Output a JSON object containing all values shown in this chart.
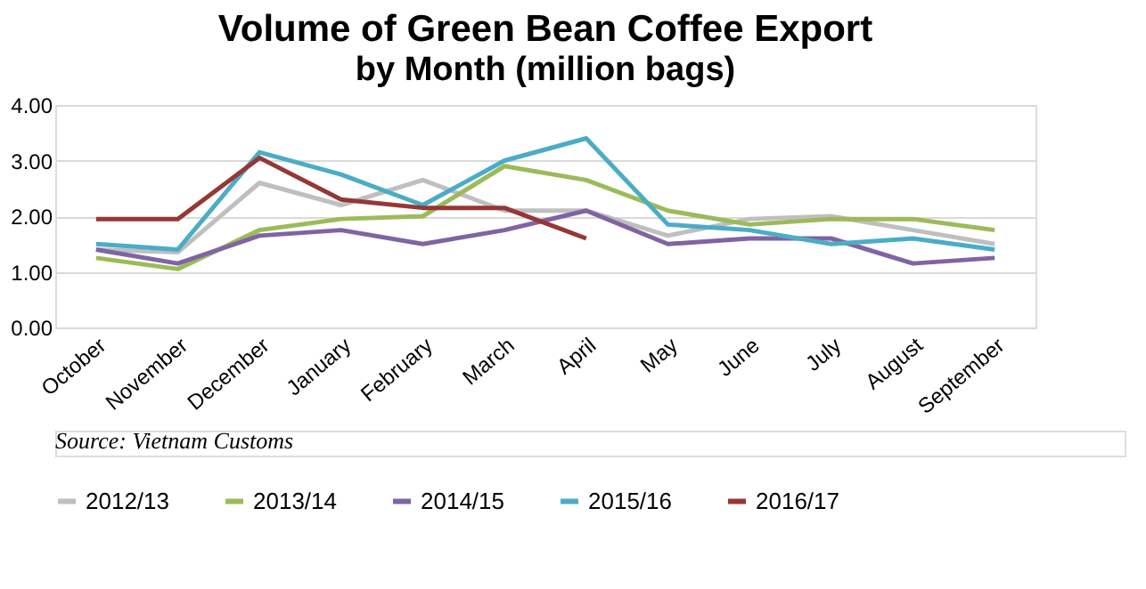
{
  "chart_data": {
    "type": "line",
    "title": "Volume of Green Bean Coffee Export",
    "subtitle": "by Month (million bags)",
    "categories": [
      "October",
      "November",
      "December",
      "January",
      "February",
      "March",
      "April",
      "May",
      "June",
      "July",
      "August",
      "September"
    ],
    "series": [
      {
        "name": "2012/13",
        "color": "#bfbfbf",
        "values": [
          1.4,
          1.35,
          2.6,
          2.2,
          2.65,
          2.1,
          2.1,
          1.65,
          1.95,
          2.0,
          1.75,
          1.5
        ]
      },
      {
        "name": "2013/14",
        "color": "#9bbb59",
        "values": [
          1.25,
          1.05,
          1.75,
          1.95,
          2.0,
          2.9,
          2.65,
          2.1,
          1.85,
          1.95,
          1.95,
          1.75
        ]
      },
      {
        "name": "2014/15",
        "color": "#8064a2",
        "values": [
          1.4,
          1.15,
          1.65,
          1.75,
          1.5,
          1.75,
          2.1,
          1.5,
          1.6,
          1.6,
          1.15,
          1.25
        ]
      },
      {
        "name": "2015/16",
        "color": "#4bacc6",
        "values": [
          1.5,
          1.4,
          3.15,
          2.75,
          2.2,
          3.0,
          3.4,
          1.85,
          1.75,
          1.5,
          1.6,
          1.4
        ]
      },
      {
        "name": "2016/17",
        "color": "#953735",
        "values": [
          1.95,
          1.95,
          3.05,
          2.3,
          2.15,
          2.15,
          1.6,
          null,
          null,
          null,
          null,
          null
        ]
      }
    ],
    "ylim": [
      0,
      4
    ],
    "yticks": [
      {
        "value": 0,
        "label": "0.00"
      },
      {
        "value": 1,
        "label": "1.00"
      },
      {
        "value": 2,
        "label": "2.00"
      },
      {
        "value": 3,
        "label": "3.00"
      },
      {
        "value": 4,
        "label": "4.00"
      }
    ],
    "grid": "y",
    "legend": "bottom",
    "marker": "none",
    "line_style": "solid",
    "annotations": [
      "Source: Vietnam Customs"
    ]
  }
}
